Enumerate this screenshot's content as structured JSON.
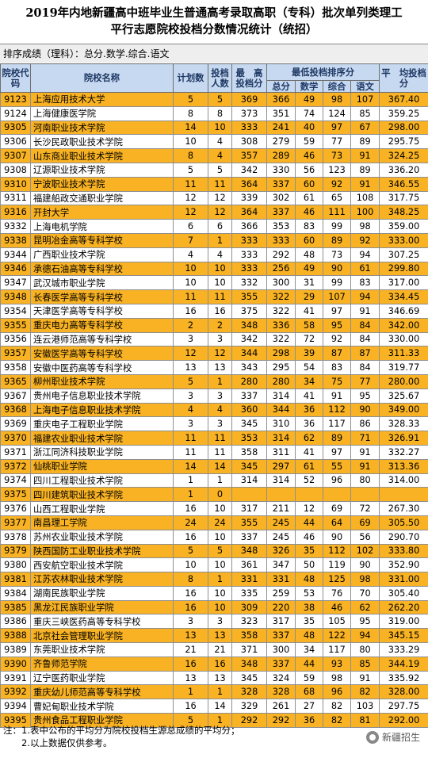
{
  "title_line1": "2019年内地新疆高中班毕业生普通高考录取高职（专科）批次单列类理工",
  "title_line2": "平行志愿院校投档分数情况统计（统招）",
  "sort_line": "排序成绩（理科）：总分.数学.综合.语文",
  "headers": {
    "code": "院校代码",
    "name": "院校名称",
    "plan": "计划数",
    "count": "投档人数",
    "max": "最　高投档分",
    "min_group": "最低投档排序分",
    "total": "总分",
    "math": "数学",
    "comp": "综合",
    "chinese": "语文",
    "avg": "平　均投档分"
  },
  "rows": [
    {
      "code": "9123",
      "name": "上海应用技术大学",
      "plan": "5",
      "count": "5",
      "max": "369",
      "total": "366",
      "math": "49",
      "comp": "98",
      "chinese": "107",
      "avg": "367.40",
      "hl": true
    },
    {
      "code": "9124",
      "name": "上海健康医学院",
      "plan": "8",
      "count": "8",
      "max": "373",
      "total": "351",
      "math": "74",
      "comp": "124",
      "chinese": "85",
      "avg": "359.25",
      "hl": false
    },
    {
      "code": "9305",
      "name": "河南职业技术学院",
      "plan": "14",
      "count": "10",
      "max": "333",
      "total": "241",
      "math": "40",
      "comp": "97",
      "chinese": "67",
      "avg": "298.00",
      "hl": true
    },
    {
      "code": "9306",
      "name": "长沙民政职业技术学院",
      "plan": "10",
      "count": "4",
      "max": "308",
      "total": "279",
      "math": "59",
      "comp": "77",
      "chinese": "89",
      "avg": "295.75",
      "hl": false
    },
    {
      "code": "9307",
      "name": "山东商业职业技术学院",
      "plan": "8",
      "count": "4",
      "max": "357",
      "total": "289",
      "math": "46",
      "comp": "73",
      "chinese": "91",
      "avg": "324.25",
      "hl": true
    },
    {
      "code": "9308",
      "name": "辽源职业技术学院",
      "plan": "5",
      "count": "5",
      "max": "342",
      "total": "330",
      "math": "56",
      "comp": "123",
      "chinese": "89",
      "avg": "336.20",
      "hl": false
    },
    {
      "code": "9310",
      "name": "宁波职业技术学院",
      "plan": "11",
      "count": "11",
      "max": "364",
      "total": "337",
      "math": "60",
      "comp": "92",
      "chinese": "91",
      "avg": "346.55",
      "hl": true
    },
    {
      "code": "9311",
      "name": "福建船政交通职业学院",
      "plan": "12",
      "count": "12",
      "max": "339",
      "total": "302",
      "math": "61",
      "comp": "65",
      "chinese": "108",
      "avg": "317.75",
      "hl": false
    },
    {
      "code": "9316",
      "name": "开封大学",
      "plan": "12",
      "count": "12",
      "max": "364",
      "total": "337",
      "math": "46",
      "comp": "111",
      "chinese": "100",
      "avg": "348.25",
      "hl": true
    },
    {
      "code": "9332",
      "name": "上海电机学院",
      "plan": "6",
      "count": "6",
      "max": "366",
      "total": "353",
      "math": "83",
      "comp": "99",
      "chinese": "98",
      "avg": "359.00",
      "hl": false
    },
    {
      "code": "9338",
      "name": "昆明冶金高等专科学校",
      "plan": "7",
      "count": "1",
      "max": "333",
      "total": "333",
      "math": "60",
      "comp": "89",
      "chinese": "92",
      "avg": "333.00",
      "hl": true
    },
    {
      "code": "9344",
      "name": "广西职业技术学院",
      "plan": "4",
      "count": "4",
      "max": "333",
      "total": "292",
      "math": "48",
      "comp": "73",
      "chinese": "94",
      "avg": "307.25",
      "hl": false
    },
    {
      "code": "9346",
      "name": "承德石油高等专科学校",
      "plan": "10",
      "count": "10",
      "max": "333",
      "total": "256",
      "math": "49",
      "comp": "90",
      "chinese": "61",
      "avg": "299.80",
      "hl": true
    },
    {
      "code": "9347",
      "name": "武汉城市职业学院",
      "plan": "10",
      "count": "10",
      "max": "332",
      "total": "300",
      "math": "31",
      "comp": "99",
      "chinese": "83",
      "avg": "317.00",
      "hl": false
    },
    {
      "code": "9348",
      "name": "长春医学高等专科学校",
      "plan": "11",
      "count": "11",
      "max": "355",
      "total": "322",
      "math": "29",
      "comp": "107",
      "chinese": "94",
      "avg": "334.45",
      "hl": true
    },
    {
      "code": "9354",
      "name": "天津医学高等专科学校",
      "plan": "16",
      "count": "16",
      "max": "375",
      "total": "322",
      "math": "41",
      "comp": "97",
      "chinese": "91",
      "avg": "346.69",
      "hl": false
    },
    {
      "code": "9355",
      "name": "重庆电力高等专科学校",
      "plan": "2",
      "count": "2",
      "max": "348",
      "total": "336",
      "math": "58",
      "comp": "95",
      "chinese": "84",
      "avg": "342.00",
      "hl": true
    },
    {
      "code": "9356",
      "name": "连云港师范高等专科学校",
      "plan": "3",
      "count": "3",
      "max": "342",
      "total": "322",
      "math": "72",
      "comp": "92",
      "chinese": "84",
      "avg": "330.00",
      "hl": false
    },
    {
      "code": "9357",
      "name": "安徽医学高等专科学校",
      "plan": "12",
      "count": "12",
      "max": "344",
      "total": "298",
      "math": "39",
      "comp": "87",
      "chinese": "87",
      "avg": "311.33",
      "hl": true
    },
    {
      "code": "9358",
      "name": "安徽中医药高等专科学校",
      "plan": "13",
      "count": "13",
      "max": "343",
      "total": "295",
      "math": "54",
      "comp": "83",
      "chinese": "84",
      "avg": "319.77",
      "hl": false
    },
    {
      "code": "9365",
      "name": "柳州职业技术学院",
      "plan": "5",
      "count": "1",
      "max": "280",
      "total": "280",
      "math": "34",
      "comp": "75",
      "chinese": "77",
      "avg": "280.00",
      "hl": true
    },
    {
      "code": "9367",
      "name": "贵州电子信息职业技术学院",
      "plan": "3",
      "count": "3",
      "max": "337",
      "total": "314",
      "math": "41",
      "comp": "91",
      "chinese": "95",
      "avg": "325.67",
      "hl": false
    },
    {
      "code": "9368",
      "name": "上海电子信息职业技术学院",
      "plan": "4",
      "count": "4",
      "max": "360",
      "total": "344",
      "math": "36",
      "comp": "112",
      "chinese": "90",
      "avg": "349.00",
      "hl": true
    },
    {
      "code": "9369",
      "name": "重庆电子工程职业学院",
      "plan": "3",
      "count": "3",
      "max": "345",
      "total": "310",
      "math": "36",
      "comp": "117",
      "chinese": "86",
      "avg": "328.33",
      "hl": false
    },
    {
      "code": "9370",
      "name": "福建农业职业技术学院",
      "plan": "11",
      "count": "11",
      "max": "353",
      "total": "314",
      "math": "62",
      "comp": "89",
      "chinese": "71",
      "avg": "326.91",
      "hl": true
    },
    {
      "code": "9371",
      "name": "浙江同济科技职业学院",
      "plan": "11",
      "count": "11",
      "max": "358",
      "total": "311",
      "math": "41",
      "comp": "97",
      "chinese": "91",
      "avg": "332.27",
      "hl": false
    },
    {
      "code": "9372",
      "name": "仙桃职业学院",
      "plan": "14",
      "count": "14",
      "max": "345",
      "total": "297",
      "math": "61",
      "comp": "55",
      "chinese": "91",
      "avg": "313.36",
      "hl": true
    },
    {
      "code": "9374",
      "name": "四川工程职业技术学院",
      "plan": "1",
      "count": "1",
      "max": "314",
      "total": "314",
      "math": "52",
      "comp": "96",
      "chinese": "80",
      "avg": "314.00",
      "hl": false
    },
    {
      "code": "9375",
      "name": "四川建筑职业技术学院",
      "plan": "1",
      "count": "0",
      "max": "",
      "total": "",
      "math": "",
      "comp": "",
      "chinese": "",
      "avg": "",
      "hl": true
    },
    {
      "code": "9376",
      "name": "山西工程职业学院",
      "plan": "16",
      "count": "10",
      "max": "317",
      "total": "211",
      "math": "12",
      "comp": "69",
      "chinese": "72",
      "avg": "267.30",
      "hl": false
    },
    {
      "code": "9377",
      "name": "南昌理工学院",
      "plan": "24",
      "count": "24",
      "max": "355",
      "total": "245",
      "math": "44",
      "comp": "64",
      "chinese": "69",
      "avg": "305.50",
      "hl": true
    },
    {
      "code": "9378",
      "name": "苏州农业职业技术学院",
      "plan": "16",
      "count": "10",
      "max": "337",
      "total": "245",
      "math": "46",
      "comp": "90",
      "chinese": "56",
      "avg": "290.70",
      "hl": false
    },
    {
      "code": "9379",
      "name": "陕西国防工业职业技术学院",
      "plan": "5",
      "count": "5",
      "max": "348",
      "total": "326",
      "math": "35",
      "comp": "112",
      "chinese": "102",
      "avg": "333.80",
      "hl": true
    },
    {
      "code": "9380",
      "name": "西安航空职业技术学院",
      "plan": "10",
      "count": "10",
      "max": "361",
      "total": "347",
      "math": "50",
      "comp": "119",
      "chinese": "90",
      "avg": "352.90",
      "hl": false
    },
    {
      "code": "9381",
      "name": "江苏农林职业技术学院",
      "plan": "8",
      "count": "1",
      "max": "331",
      "total": "331",
      "math": "48",
      "comp": "125",
      "chinese": "98",
      "avg": "331.00",
      "hl": true
    },
    {
      "code": "9384",
      "name": "湖南民族职业学院",
      "plan": "16",
      "count": "10",
      "max": "335",
      "total": "259",
      "math": "53",
      "comp": "76",
      "chinese": "70",
      "avg": "305.40",
      "hl": false
    },
    {
      "code": "9385",
      "name": "黑龙江民族职业学院",
      "plan": "16",
      "count": "10",
      "max": "309",
      "total": "220",
      "math": "38",
      "comp": "46",
      "chinese": "62",
      "avg": "262.20",
      "hl": true
    },
    {
      "code": "9386",
      "name": "重庆三峡医药高等专科学校",
      "plan": "3",
      "count": "3",
      "max": "323",
      "total": "317",
      "math": "35",
      "comp": "105",
      "chinese": "95",
      "avg": "319.00",
      "hl": false
    },
    {
      "code": "9388",
      "name": "北京社会管理职业学院",
      "plan": "13",
      "count": "13",
      "max": "358",
      "total": "337",
      "math": "48",
      "comp": "122",
      "chinese": "94",
      "avg": "345.15",
      "hl": true
    },
    {
      "code": "9389",
      "name": "东莞职业技术学院",
      "plan": "21",
      "count": "21",
      "max": "371",
      "total": "300",
      "math": "34",
      "comp": "117",
      "chinese": "80",
      "avg": "333.29",
      "hl": false
    },
    {
      "code": "9390",
      "name": "齐鲁师范学院",
      "plan": "16",
      "count": "16",
      "max": "348",
      "total": "337",
      "math": "44",
      "comp": "93",
      "chinese": "85",
      "avg": "344.19",
      "hl": true
    },
    {
      "code": "9391",
      "name": "辽宁医药职业学院",
      "plan": "13",
      "count": "13",
      "max": "345",
      "total": "324",
      "math": "59",
      "comp": "98",
      "chinese": "91",
      "avg": "335.92",
      "hl": false
    },
    {
      "code": "9392",
      "name": "重庆幼儿师范高等专科学校",
      "plan": "1",
      "count": "1",
      "max": "328",
      "total": "328",
      "math": "68",
      "comp": "96",
      "chinese": "82",
      "avg": "328.00",
      "hl": true
    },
    {
      "code": "9394",
      "name": "曹妃甸职业技术学院",
      "plan": "16",
      "count": "14",
      "max": "329",
      "total": "261",
      "math": "27",
      "comp": "82",
      "chinese": "103",
      "avg": "297.75",
      "hl": false
    },
    {
      "code": "9395",
      "name": "贵州食品工程职业学院",
      "plan": "5",
      "count": "1",
      "max": "292",
      "total": "292",
      "math": "36",
      "comp": "82",
      "chinese": "81",
      "avg": "292.00",
      "hl": true
    }
  ],
  "notes": {
    "line1": "注：1.表中公布的平均分为院校投档生源总成绩的平均分；",
    "line2": "　　2.以上数据仅供参考。"
  },
  "watermark": {
    "text": "新疆招生",
    "icon": "wechat-icon"
  }
}
